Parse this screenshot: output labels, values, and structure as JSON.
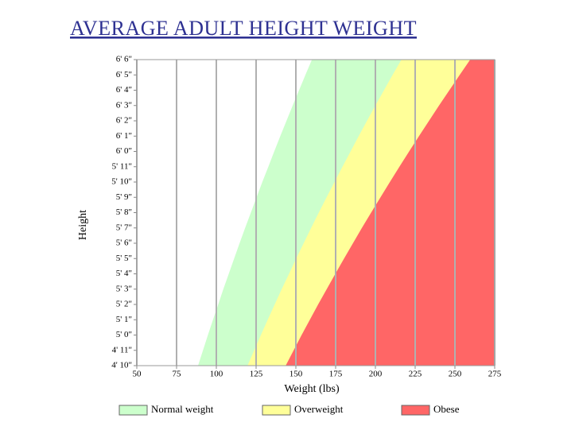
{
  "chart_data": {
    "type": "area",
    "title": "AVERAGE ADULT HEIGHT WEIGHT",
    "xlabel": "Weight (lbs)",
    "ylabel": "Height",
    "xlim": [
      50,
      275
    ],
    "ylim": [
      58,
      78
    ],
    "xticks": [
      50,
      75,
      100,
      125,
      150,
      175,
      200,
      225,
      250,
      275
    ],
    "yticks": [
      {
        "value": 58,
        "label": "4' 10\""
      },
      {
        "value": 59,
        "label": "4' 11\""
      },
      {
        "value": 60,
        "label": "5' 0\""
      },
      {
        "value": 61,
        "label": "5' 1\""
      },
      {
        "value": 62,
        "label": "5' 2\""
      },
      {
        "value": 63,
        "label": "5' 3\""
      },
      {
        "value": 64,
        "label": "5' 4\""
      },
      {
        "value": 65,
        "label": "5' 5\""
      },
      {
        "value": 66,
        "label": "5' 6\""
      },
      {
        "value": 67,
        "label": "5' 7\""
      },
      {
        "value": 68,
        "label": "5' 8\""
      },
      {
        "value": 69,
        "label": "5' 9\""
      },
      {
        "value": 70,
        "label": "5' 10\""
      },
      {
        "value": 71,
        "label": "5' 11\""
      },
      {
        "value": 72,
        "label": "6' 0\""
      },
      {
        "value": 73,
        "label": "6' 1\""
      },
      {
        "value": 74,
        "label": "6' 2\""
      },
      {
        "value": 75,
        "label": "6' 3\""
      },
      {
        "value": 76,
        "label": "6' 4\""
      },
      {
        "value": 77,
        "label": "6' 5\""
      },
      {
        "value": 78,
        "label": "6' 6\""
      }
    ],
    "grid": "x",
    "y": [
      58,
      59,
      60,
      61,
      62,
      63,
      64,
      65,
      66,
      67,
      68,
      69,
      70,
      71,
      72,
      73,
      74,
      75,
      76,
      77,
      78
    ],
    "series": [
      {
        "name": "Normal weight",
        "color": "#ccffcc",
        "values": [
          88.5,
          91.6,
          94.7,
          97.9,
          101.2,
          104.4,
          107.8,
          111.2,
          114.6,
          118.1,
          121.7,
          125.3,
          128.9,
          132.7,
          136.4,
          140.2,
          144.1,
          148.0,
          152.0,
          156.0,
          160.1
        ]
      },
      {
        "name": "Overweight",
        "color": "#ffff99",
        "values": [
          119.6,
          123.8,
          128.0,
          132.3,
          136.7,
          141.1,
          145.7,
          150.2,
          154.9,
          159.6,
          164.4,
          169.3,
          174.3,
          179.3,
          184.4,
          189.5,
          194.7,
          200.0,
          205.4,
          210.8,
          216.4
        ]
      },
      {
        "name": "Obese",
        "color": "#ff6666",
        "values": [
          143.6,
          148.6,
          153.6,
          158.8,
          164.0,
          169.4,
          174.8,
          180.3,
          185.9,
          191.5,
          197.3,
          203.2,
          209.1,
          215.1,
          221.2,
          227.4,
          233.7,
          240.0,
          246.5,
          253.0,
          259.6
        ]
      }
    ],
    "legend": "bottom"
  }
}
